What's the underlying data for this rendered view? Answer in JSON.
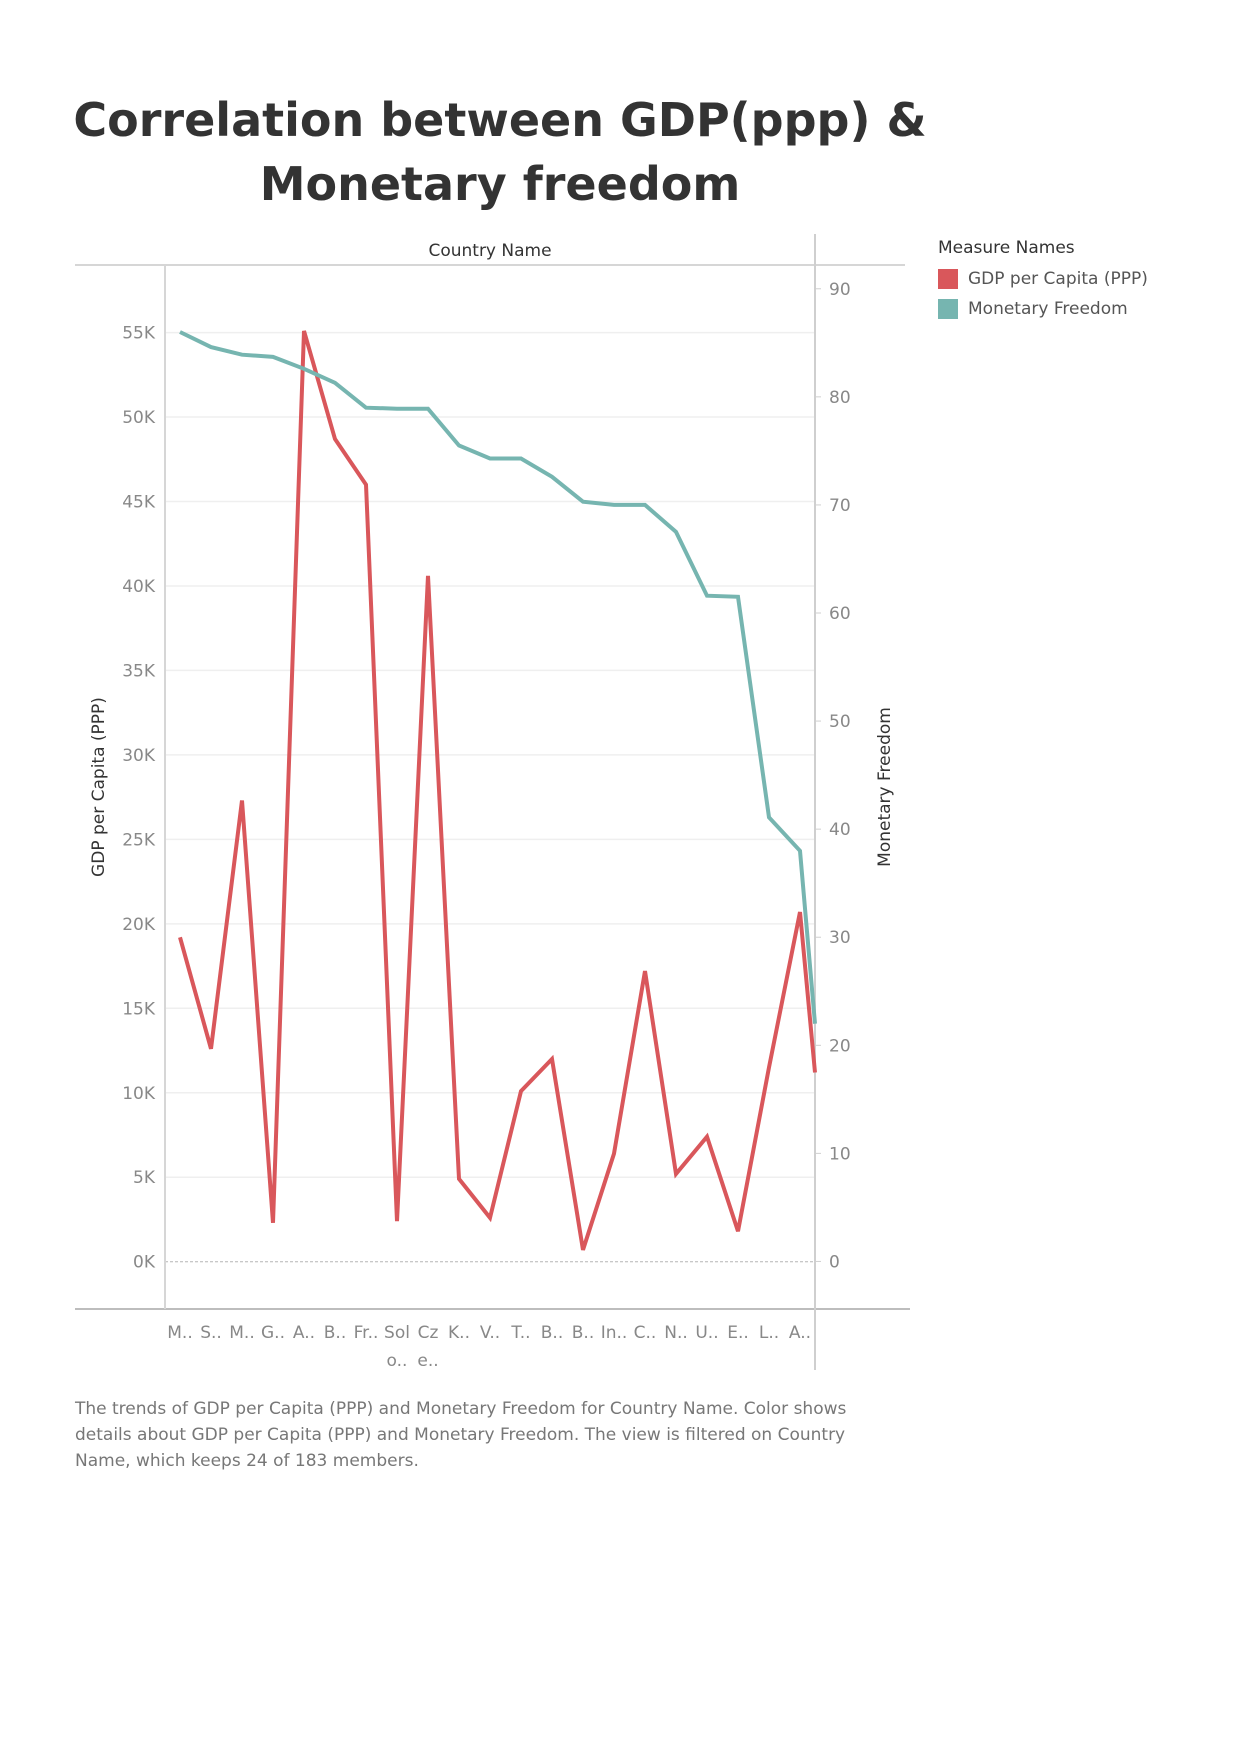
{
  "chart_data": {
    "type": "line",
    "title": "Correlation between GDP(ppp) & Monetary freedom",
    "title_lines": [
      "Correlation between GDP(ppp) &",
      "Monetary freedom"
    ],
    "header": "Country Name",
    "xlabel": "Country Name",
    "ylabel_left": "GDP per Capita (PPP)",
    "ylabel_right": "Monetary Freedom",
    "categories": [
      "M..",
      "S..",
      "M..",
      "G..",
      "A..",
      "B..",
      "Fr..",
      "Sol o..",
      "Cz e..",
      "K..",
      "V..",
      "T..",
      "B..",
      "B..",
      "In..",
      "C..",
      "N..",
      "U..",
      "E..",
      "L..",
      "A.."
    ],
    "category_lines": [
      [
        "M.."
      ],
      [
        "S.."
      ],
      [
        "M.."
      ],
      [
        "G.."
      ],
      [
        "A.."
      ],
      [
        "B.."
      ],
      [
        "Fr.."
      ],
      [
        "Sol",
        "o.."
      ],
      [
        "Cz",
        "e.."
      ],
      [
        "K.."
      ],
      [
        "V.."
      ],
      [
        "T.."
      ],
      [
        "B.."
      ],
      [
        "B.."
      ],
      [
        "In.."
      ],
      [
        "C.."
      ],
      [
        "N.."
      ],
      [
        "U.."
      ],
      [
        "E.."
      ],
      [
        "L.."
      ],
      [
        "A.."
      ]
    ],
    "left_axis": {
      "ylim": [
        -2800,
        59000
      ],
      "ticks": [
        0,
        5000,
        10000,
        15000,
        20000,
        25000,
        30000,
        35000,
        40000,
        45000,
        50000,
        55000
      ],
      "tick_labels": [
        "0K",
        "5K",
        "10K",
        "15K",
        "20K",
        "25K",
        "30K",
        "35K",
        "40K",
        "45K",
        "50K",
        "55K"
      ]
    },
    "right_axis": {
      "ylim": [
        -4.4,
        92.2
      ],
      "ticks": [
        0,
        10,
        20,
        30,
        40,
        50,
        60,
        70,
        80,
        90
      ],
      "tick_labels": [
        "0",
        "10",
        "20",
        "30",
        "40",
        "50",
        "60",
        "70",
        "80",
        "90"
      ]
    },
    "series": [
      {
        "name": "GDP per Capita (PPP)",
        "axis": "left",
        "color": "#d9575b",
        "values": [
          19200,
          12600,
          27300,
          2300,
          55100,
          48700,
          46000,
          2400,
          40600,
          4900,
          2600,
          10100,
          12000,
          700,
          6400,
          17200,
          5200,
          7400,
          1800,
          11500,
          20700
        ],
        "end_value": 11200
      },
      {
        "name": "Monetary Freedom",
        "axis": "right",
        "color": "#76b5b0",
        "values": [
          86.0,
          84.6,
          83.9,
          83.7,
          82.6,
          81.3,
          79.0,
          78.9,
          78.9,
          75.5,
          74.3,
          74.3,
          72.6,
          70.3,
          70.0,
          70.0,
          67.5,
          61.6,
          61.5,
          41.1,
          38.0
        ],
        "end_value": 22.0
      }
    ],
    "grid": true,
    "legend_title": "Measure Names",
    "legend_position": "top-right"
  },
  "caption": "The trends of GDP per Capita (PPP) and Monetary Freedom for Country Name.  Color shows details about GDP per Capita (PPP) and Monetary Freedom. The view is filtered on Country Name, which keeps 24 of 183 members."
}
